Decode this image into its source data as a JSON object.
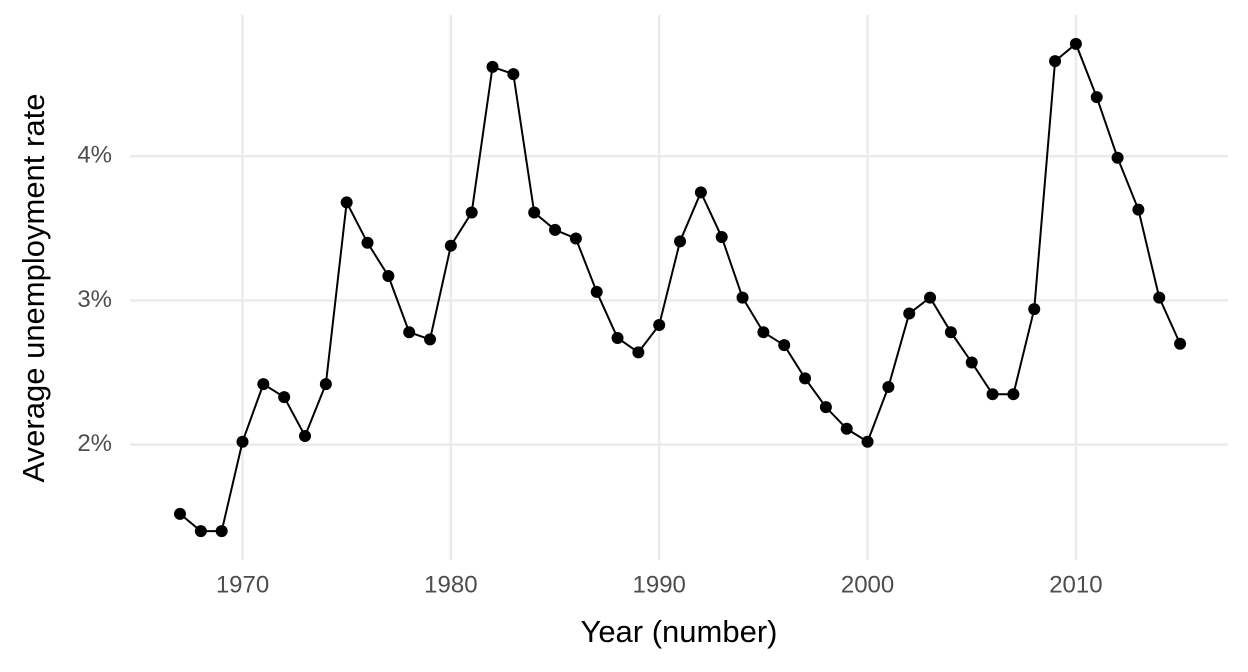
{
  "chart_data": {
    "type": "line",
    "x_label": "Year (number)",
    "y_label": "Average unemployment rate",
    "x": [
      1967,
      1968,
      1969,
      1970,
      1971,
      1972,
      1973,
      1974,
      1975,
      1976,
      1977,
      1978,
      1979,
      1980,
      1981,
      1982,
      1983,
      1984,
      1985,
      1986,
      1987,
      1988,
      1989,
      1990,
      1991,
      1992,
      1993,
      1994,
      1995,
      1996,
      1997,
      1998,
      1999,
      2000,
      2001,
      2002,
      2003,
      2004,
      2005,
      2006,
      2007,
      2008,
      2009,
      2010,
      2011,
      2012,
      2013,
      2014,
      2015
    ],
    "series": [
      {
        "color": "#000000",
        "values": [
          1.52,
          1.4,
          1.4,
          2.02,
          2.42,
          2.33,
          2.06,
          2.42,
          3.68,
          3.4,
          3.17,
          2.78,
          2.73,
          3.38,
          3.61,
          4.62,
          4.57,
          3.61,
          3.49,
          3.43,
          3.06,
          2.74,
          2.64,
          2.83,
          3.41,
          3.75,
          3.44,
          3.02,
          2.78,
          2.69,
          2.46,
          2.26,
          2.11,
          2.02,
          2.4,
          2.91,
          3.02,
          2.78,
          2.57,
          2.35,
          2.35,
          2.94,
          4.66,
          4.78,
          4.41,
          3.99,
          3.63,
          3.02,
          2.7
        ]
      }
    ],
    "xlim": [
      1964.6,
      2017.3
    ],
    "xticks": [
      1970,
      1980,
      1990,
      2000,
      2010
    ],
    "ylim": [
      1.2,
      4.98
    ],
    "yticks": [
      {
        "value": 2,
        "label": "2%"
      },
      {
        "value": 3,
        "label": "3%"
      },
      {
        "value": 4,
        "label": "4%"
      }
    ],
    "grid": true,
    "markers": true
  }
}
